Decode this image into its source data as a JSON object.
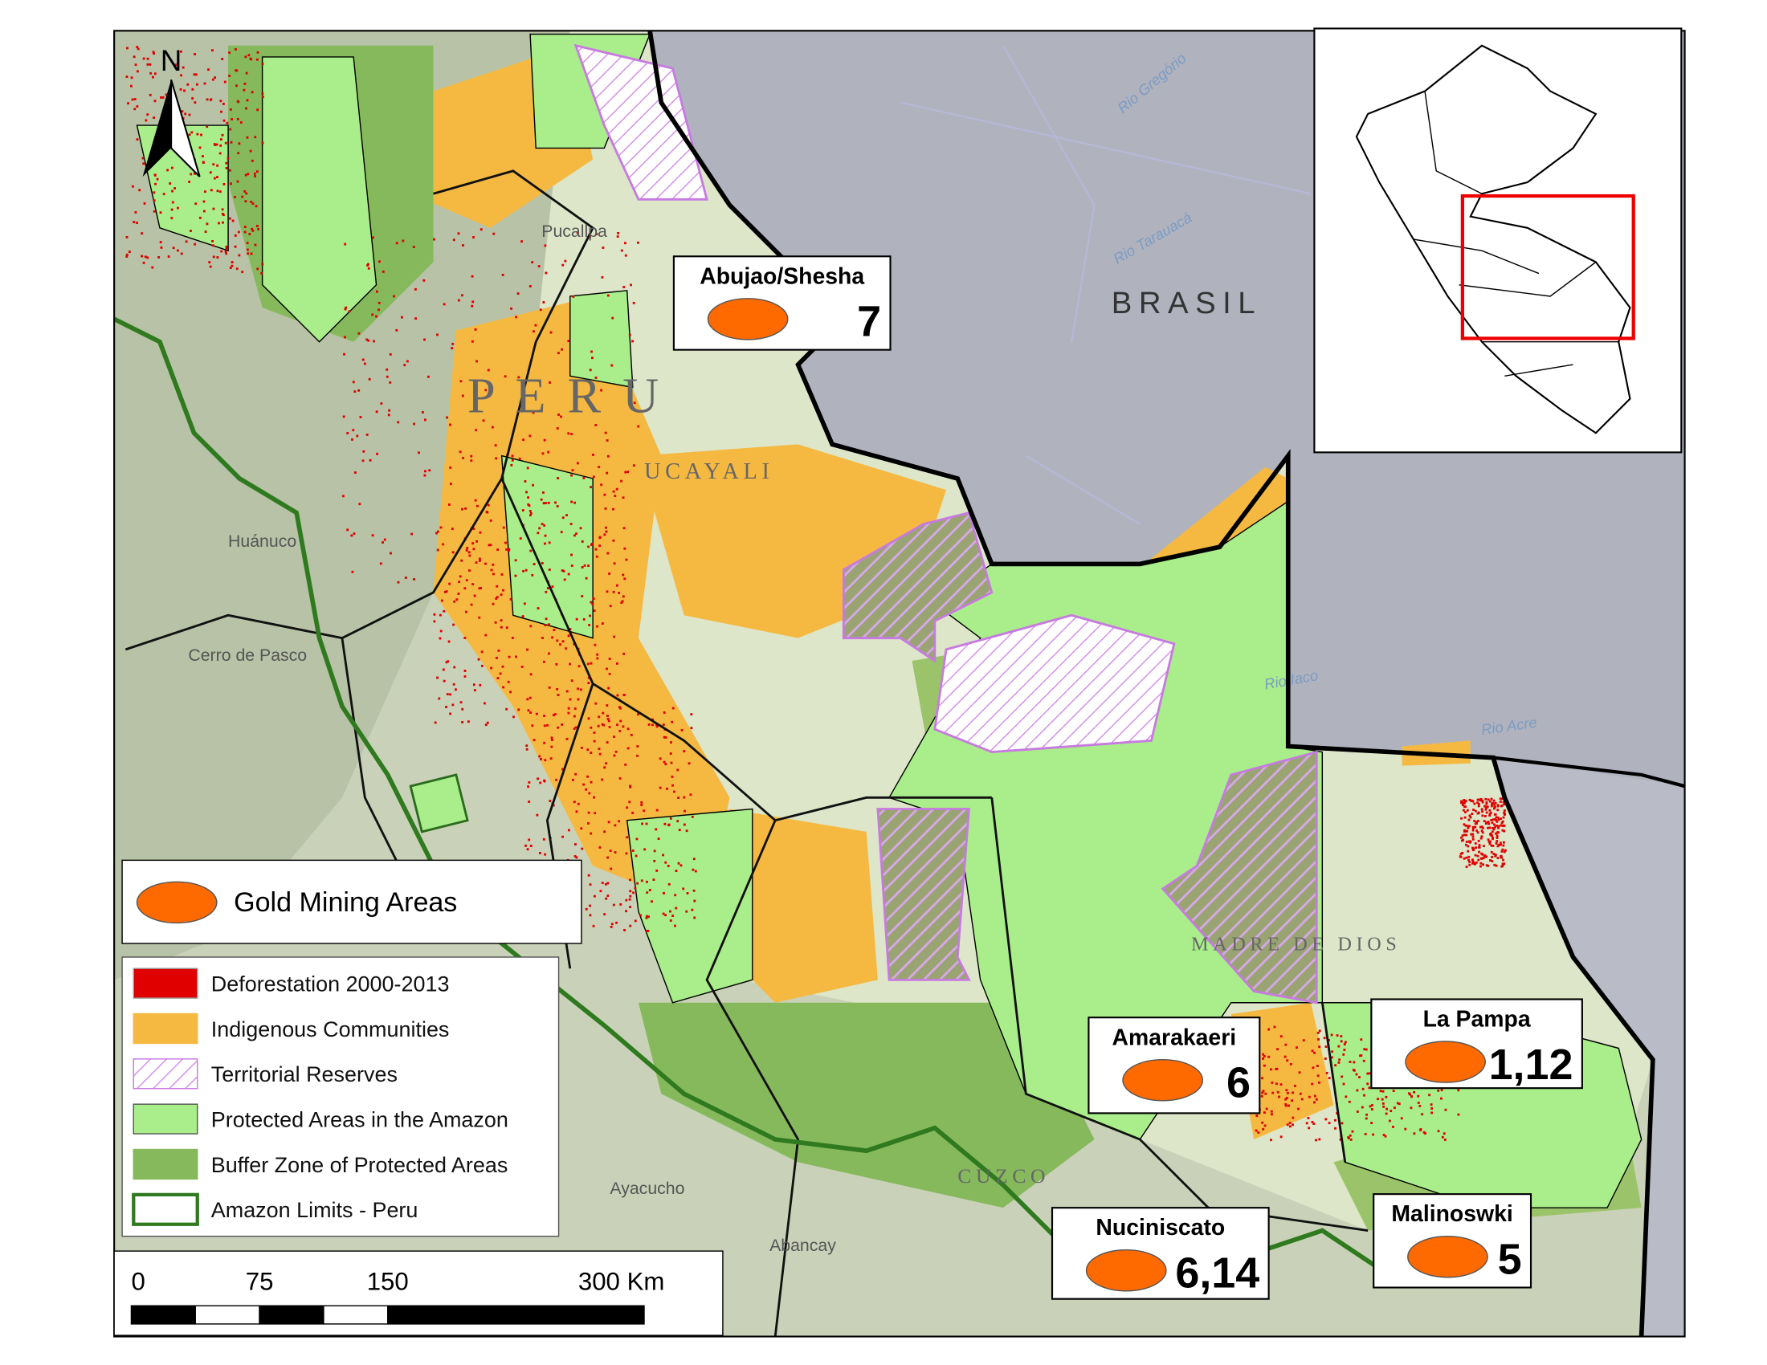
{
  "map": {
    "north_arrow": "N",
    "place_labels": [
      "Pucallpa",
      "P E R U",
      "UCAYALI",
      "BRASIL",
      "Huánuco",
      "Cerro de Pasco",
      "Ayacucho",
      "Abancay",
      "CUZCO",
      "MADRE DE DIOS"
    ],
    "river_labels": [
      "Rio Gregório",
      "Rio Tarauacá",
      "Rio Iaco",
      "Rio Acre"
    ]
  },
  "legend": {
    "gold_mining": "Gold Mining Areas",
    "items": [
      "Deforestation 2000-2013",
      "Indigenous Communities",
      "Territorial Reserves",
      "Protected Areas in the Amazon",
      "Buffer Zone of Protected Areas",
      "Amazon Limits - Peru"
    ]
  },
  "mining_areas": [
    {
      "name": "Abujao/Shesha",
      "number": "7"
    },
    {
      "name": "Amarakaeri",
      "number": "6"
    },
    {
      "name": "La Pampa",
      "number": "1,12"
    },
    {
      "name": "Nuciniscato",
      "number": "6,14"
    },
    {
      "name": "Malinoswki",
      "number": "5"
    }
  ],
  "scale_bar": {
    "ticks": [
      "0",
      "75",
      "150",
      "300 Km"
    ]
  }
}
